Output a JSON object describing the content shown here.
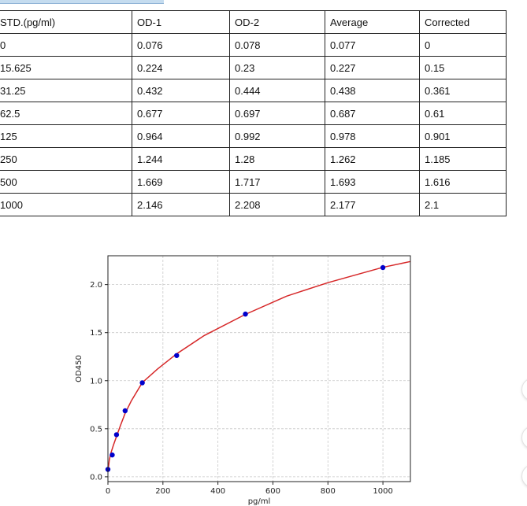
{
  "table": {
    "headers": [
      "STD.(pg/ml)",
      "OD-1",
      "OD-2",
      "Average",
      "Corrected"
    ],
    "rows": [
      [
        "0",
        "0.076",
        "0.078",
        "0.077",
        "0"
      ],
      [
        "15.625",
        "0.224",
        "0.23",
        "0.227",
        "0.15"
      ],
      [
        "31.25",
        "0.432",
        "0.444",
        "0.438",
        "0.361"
      ],
      [
        "62.5",
        "0.677",
        "0.697",
        "0.687",
        "0.61"
      ],
      [
        "125",
        "0.964",
        "0.992",
        "0.978",
        "0.901"
      ],
      [
        "250",
        "1.244",
        "1.28",
        "1.262",
        "1.185"
      ],
      [
        "500",
        "1.669",
        "1.717",
        "1.693",
        "1.616"
      ],
      [
        "1000",
        "2.146",
        "2.208",
        "2.177",
        "2.1"
      ]
    ]
  },
  "chart_data": {
    "type": "scatter",
    "xlabel": "pg/ml",
    "ylabel": "OD450",
    "xlim": [
      0,
      1100
    ],
    "ylim": [
      -0.05,
      2.3
    ],
    "xticks": [
      0,
      200,
      400,
      600,
      800,
      1000
    ],
    "xtick_labels": [
      "0",
      "200",
      "400",
      "600",
      "800",
      "1000"
    ],
    "yticks": [
      0.0,
      0.5,
      1.0,
      1.5,
      2.0
    ],
    "ytick_labels": [
      "0.0",
      "0.5",
      "1.0",
      "1.5",
      "2.0"
    ],
    "grid": true,
    "series": [
      {
        "x": [
          0,
          15.625,
          31.25,
          62.5,
          125,
          250,
          500,
          1000
        ],
        "y": [
          0.077,
          0.227,
          0.438,
          0.687,
          0.978,
          1.262,
          1.693,
          2.177
        ],
        "color": "#0000cc"
      }
    ],
    "fit_curve": {
      "color": "#d62728",
      "x": [
        0,
        5,
        10,
        20,
        31.25,
        45,
        62.5,
        85,
        125,
        180,
        250,
        350,
        500,
        650,
        800,
        1000,
        1100
      ],
      "y": [
        0.05,
        0.17,
        0.24,
        0.33,
        0.42,
        0.53,
        0.66,
        0.79,
        0.98,
        1.12,
        1.28,
        1.47,
        1.69,
        1.88,
        2.02,
        2.18,
        2.24
      ]
    }
  }
}
